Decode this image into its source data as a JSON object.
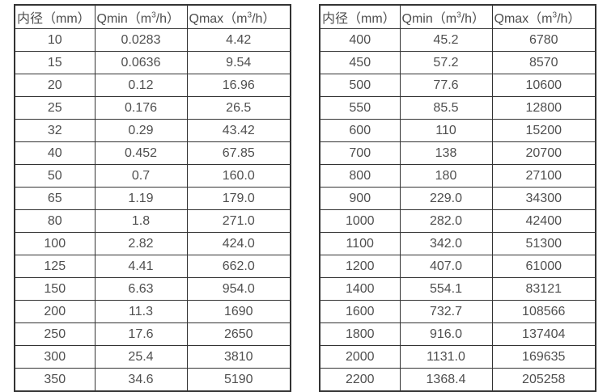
{
  "colors": {
    "background": "#ffffff",
    "border": "#333333",
    "text": "#4f4f4f"
  },
  "tables": [
    {
      "name": "flow-spec-small-diameters",
      "headers": {
        "diameter": "内径（mm）",
        "qmin": {
          "pre": "Qmin（m",
          "sup": "3",
          "post": "/h）"
        },
        "qmax": {
          "pre": "Qmax（m",
          "sup": "3",
          "post": "/h）"
        }
      },
      "rows": [
        [
          "10",
          "0.0283",
          "4.42"
        ],
        [
          "15",
          "0.0636",
          "9.54"
        ],
        [
          "20",
          "0.12",
          "16.96"
        ],
        [
          "25",
          "0.176",
          "26.5"
        ],
        [
          "32",
          "0.29",
          "43.42"
        ],
        [
          "40",
          "0.452",
          "67.85"
        ],
        [
          "50",
          "0.7",
          "160.0"
        ],
        [
          "65",
          "1.19",
          "179.0"
        ],
        [
          "80",
          "1.8",
          "271.0"
        ],
        [
          "100",
          "2.82",
          "424.0"
        ],
        [
          "125",
          "4.41",
          "662.0"
        ],
        [
          "150",
          "6.63",
          "954.0"
        ],
        [
          "200",
          "11.3",
          "1690"
        ],
        [
          "250",
          "17.6",
          "2650"
        ],
        [
          "300",
          "25.4",
          "3810"
        ],
        [
          "350",
          "34.6",
          "5190"
        ]
      ]
    },
    {
      "name": "flow-spec-large-diameters",
      "headers": {
        "diameter": "内径（mm）",
        "qmin": {
          "pre": "Qmin（m",
          "sup": "3",
          "post": "/h）"
        },
        "qmax": {
          "pre": "Qmax（m",
          "sup": "3",
          "post": "/h）"
        }
      },
      "rows": [
        [
          "400",
          "45.2",
          "6780"
        ],
        [
          "450",
          "57.2",
          "8570"
        ],
        [
          "500",
          "77.6",
          "10600"
        ],
        [
          "550",
          "85.5",
          "12800"
        ],
        [
          "600",
          "110",
          "15200"
        ],
        [
          "700",
          "138",
          "20700"
        ],
        [
          "800",
          "180",
          "27100"
        ],
        [
          "900",
          "229.0",
          "34300"
        ],
        [
          "1000",
          "282.0",
          "42400"
        ],
        [
          "1100",
          "342.0",
          "51300"
        ],
        [
          "1200",
          "407.0",
          "61000"
        ],
        [
          "1400",
          "554.1",
          "83121"
        ],
        [
          "1600",
          "732.7",
          "108566"
        ],
        [
          "1800",
          "916.0",
          "137404"
        ],
        [
          "2000",
          "1131.0",
          "169635"
        ],
        [
          "2200",
          "1368.4",
          "205258"
        ]
      ]
    }
  ]
}
